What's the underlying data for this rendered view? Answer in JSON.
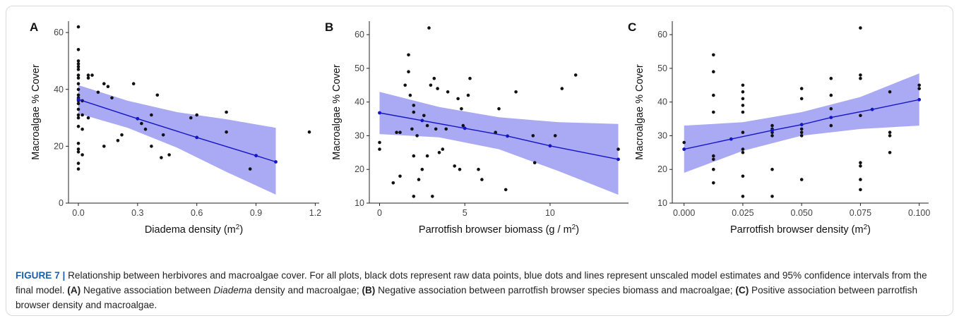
{
  "figure": {
    "caption": {
      "label": "FIGURE 7 |",
      "intro": "Relationship between herbivores and macroalgae cover. For all plots, black dots represent raw data points, blue dots and lines represent unscaled model estimates and 95% confidence intervals from the final model.",
      "part_a_tag": "(A)",
      "part_a_pre": "Negative association between",
      "part_a_italic": "Diadema",
      "part_a_post": "density and macroalgae;",
      "part_b_tag": "(B)",
      "part_b_text": "Negative association between parrotfish browser species biomass and macroalgae;",
      "part_c_tag": "(C)",
      "part_c_text": "Positive association between parrotfish browser density and macroalgae."
    },
    "colors": {
      "raw_points": "#111111",
      "model": "#1515c8",
      "ci_band": "#a9a9f4"
    }
  },
  "chart_data": [
    {
      "panel": "A",
      "type": "scatter",
      "xlabel": "Diadema density",
      "xunit": "(m",
      "xunit_sup": "2",
      "xunit_end": ")",
      "ylabel": "Macroalgae % Cover",
      "xlim": [
        -0.05,
        1.22
      ],
      "ylim": [
        0,
        64
      ],
      "xticks": [
        0.0,
        0.3,
        0.6,
        0.9,
        1.2
      ],
      "xtick_labels": [
        "0.0",
        "0.3",
        "0.6",
        "0.9",
        "1.2"
      ],
      "yticks": [
        0,
        20,
        40,
        60
      ],
      "ytick_labels": [
        "0",
        "20",
        "40",
        "60"
      ],
      "raw_points": [
        [
          0,
          62
        ],
        [
          0,
          54
        ],
        [
          0,
          50
        ],
        [
          0,
          49
        ],
        [
          0,
          48
        ],
        [
          0,
          47
        ],
        [
          0,
          45
        ],
        [
          0,
          44
        ],
        [
          0,
          42
        ],
        [
          0,
          40
        ],
        [
          0,
          38
        ],
        [
          0,
          37
        ],
        [
          0,
          36
        ],
        [
          0,
          35
        ],
        [
          0,
          33
        ],
        [
          0,
          31
        ],
        [
          0,
          30
        ],
        [
          0,
          27
        ],
        [
          0,
          21
        ],
        [
          0,
          19
        ],
        [
          0,
          18
        ],
        [
          0,
          14
        ],
        [
          0,
          12
        ],
        [
          0.02,
          36
        ],
        [
          0.02,
          31
        ],
        [
          0.02,
          26
        ],
        [
          0.02,
          17
        ],
        [
          0.05,
          45
        ],
        [
          0.05,
          44
        ],
        [
          0.05,
          30
        ],
        [
          0.07,
          45
        ],
        [
          0.1,
          39
        ],
        [
          0.13,
          42
        ],
        [
          0.13,
          20
        ],
        [
          0.15,
          41
        ],
        [
          0.17,
          37
        ],
        [
          0.2,
          22
        ],
        [
          0.22,
          24
        ],
        [
          0.28,
          42
        ],
        [
          0.32,
          28
        ],
        [
          0.34,
          26
        ],
        [
          0.37,
          31
        ],
        [
          0.37,
          20
        ],
        [
          0.4,
          38
        ],
        [
          0.42,
          16
        ],
        [
          0.43,
          24
        ],
        [
          0.46,
          17
        ],
        [
          0.57,
          30
        ],
        [
          0.6,
          31
        ],
        [
          0.75,
          32
        ],
        [
          0.75,
          25
        ],
        [
          0.87,
          12
        ],
        [
          1.17,
          25
        ]
      ],
      "model_points": [
        [
          0,
          36.5
        ],
        [
          0.3,
          29.7
        ],
        [
          0.6,
          23.1
        ],
        [
          0.9,
          16.7
        ],
        [
          1.0,
          14.5
        ]
      ],
      "ci_band": {
        "x": [
          0,
          0.25,
          0.5,
          0.75,
          1.0
        ],
        "lower": [
          31.5,
          26.5,
          19.5,
          11.0,
          3.0
        ],
        "upper": [
          41.5,
          36.0,
          32.0,
          29.5,
          26.5
        ]
      }
    },
    {
      "panel": "B",
      "type": "scatter",
      "xlabel": "Parrotfish browser biomass",
      "xunit": "(g / m",
      "xunit_sup": "2",
      "xunit_end": ")",
      "ylabel": "Macroalgae % Cover",
      "xlim": [
        -0.6,
        14.6
      ],
      "ylim": [
        10,
        64
      ],
      "xticks": [
        0,
        5,
        10
      ],
      "xtick_labels": [
        "0",
        "5",
        "10"
      ],
      "yticks": [
        10,
        20,
        30,
        40,
        50,
        60
      ],
      "ytick_labels": [
        "10",
        "20",
        "30",
        "40",
        "50",
        "60"
      ],
      "raw_points": [
        [
          0,
          28
        ],
        [
          0,
          26
        ],
        [
          0.8,
          16
        ],
        [
          1.0,
          31
        ],
        [
          1.2,
          31
        ],
        [
          1.2,
          18
        ],
        [
          1.5,
          45
        ],
        [
          1.7,
          54
        ],
        [
          1.7,
          49
        ],
        [
          1.8,
          42
        ],
        [
          1.9,
          32
        ],
        [
          2.0,
          39
        ],
        [
          2.0,
          37
        ],
        [
          2.0,
          24
        ],
        [
          2.0,
          12
        ],
        [
          2.2,
          30
        ],
        [
          2.3,
          17
        ],
        [
          2.5,
          20
        ],
        [
          2.6,
          36
        ],
        [
          2.8,
          24
        ],
        [
          2.8,
          33
        ],
        [
          2.9,
          62
        ],
        [
          3.0,
          45
        ],
        [
          3.1,
          12
        ],
        [
          3.2,
          47
        ],
        [
          3.3,
          32
        ],
        [
          3.4,
          44
        ],
        [
          3.5,
          25
        ],
        [
          3.7,
          26
        ],
        [
          3.9,
          32
        ],
        [
          4.0,
          43
        ],
        [
          4.4,
          21
        ],
        [
          4.6,
          41
        ],
        [
          4.7,
          20
        ],
        [
          4.8,
          38
        ],
        [
          4.9,
          33
        ],
        [
          5.2,
          42
        ],
        [
          5.3,
          47
        ],
        [
          5.8,
          20
        ],
        [
          6.0,
          17
        ],
        [
          6.8,
          31
        ],
        [
          7.0,
          38
        ],
        [
          7.4,
          14
        ],
        [
          8.0,
          43
        ],
        [
          9.0,
          30
        ],
        [
          9.1,
          22
        ],
        [
          10.3,
          30
        ],
        [
          10.7,
          44
        ],
        [
          11.5,
          48
        ],
        [
          14.0,
          26
        ]
      ],
      "model_points": [
        [
          0,
          36.8
        ],
        [
          2.5,
          34.5
        ],
        [
          5,
          32.2
        ],
        [
          7.5,
          29.9
        ],
        [
          10,
          27.0
        ],
        [
          14.0,
          23.0
        ]
      ],
      "ci_band": {
        "x": [
          0,
          3.5,
          7,
          10.5,
          14
        ],
        "lower": [
          30.5,
          29.5,
          26.0,
          19.5,
          12.5
        ],
        "upper": [
          43.0,
          38.5,
          35.5,
          34.0,
          33.5
        ]
      }
    },
    {
      "panel": "C",
      "type": "scatter",
      "xlabel": "Parrotfish browser density",
      "xunit": "(m",
      "xunit_sup": "2",
      "xunit_end": ")",
      "ylabel": "Macroalgae % Cover",
      "xlim": [
        -0.005,
        0.104
      ],
      "ylim": [
        10,
        64
      ],
      "xticks": [
        0.0,
        0.025,
        0.05,
        0.075,
        0.1
      ],
      "xtick_labels": [
        "0.000",
        "0.025",
        "0.050",
        "0.075",
        "0.100"
      ],
      "yticks": [
        10,
        20,
        30,
        40,
        50,
        60
      ],
      "ytick_labels": [
        "10",
        "20",
        "30",
        "40",
        "50",
        "60"
      ],
      "raw_points": [
        [
          0,
          28
        ],
        [
          0,
          26
        ],
        [
          0.0125,
          54
        ],
        [
          0.0125,
          49
        ],
        [
          0.0125,
          42
        ],
        [
          0.0125,
          37
        ],
        [
          0.0125,
          24
        ],
        [
          0.0125,
          23
        ],
        [
          0.0125,
          20
        ],
        [
          0.0125,
          16
        ],
        [
          0.025,
          45
        ],
        [
          0.025,
          43
        ],
        [
          0.025,
          41
        ],
        [
          0.025,
          39
        ],
        [
          0.025,
          37
        ],
        [
          0.025,
          31
        ],
        [
          0.025,
          26
        ],
        [
          0.025,
          25
        ],
        [
          0.025,
          18
        ],
        [
          0.025,
          12
        ],
        [
          0.0375,
          33
        ],
        [
          0.0375,
          32
        ],
        [
          0.0375,
          31
        ],
        [
          0.0375,
          30
        ],
        [
          0.0375,
          20
        ],
        [
          0.0375,
          12
        ],
        [
          0.05,
          44
        ],
        [
          0.05,
          41
        ],
        [
          0.05,
          32
        ],
        [
          0.05,
          31
        ],
        [
          0.05,
          30
        ],
        [
          0.05,
          17
        ],
        [
          0.0625,
          47
        ],
        [
          0.0625,
          42
        ],
        [
          0.0625,
          38
        ],
        [
          0.0625,
          33
        ],
        [
          0.075,
          62
        ],
        [
          0.075,
          48
        ],
        [
          0.075,
          47
        ],
        [
          0.075,
          36
        ],
        [
          0.075,
          22
        ],
        [
          0.075,
          21
        ],
        [
          0.075,
          17
        ],
        [
          0.075,
          14
        ],
        [
          0.0875,
          43
        ],
        [
          0.0875,
          31
        ],
        [
          0.0875,
          30
        ],
        [
          0.0875,
          25
        ],
        [
          0.1,
          45
        ],
        [
          0.1,
          44
        ]
      ],
      "model_points": [
        [
          0,
          26.0
        ],
        [
          0.02,
          29.0
        ],
        [
          0.0375,
          31.6
        ],
        [
          0.05,
          33.3
        ],
        [
          0.0625,
          35.4
        ],
        [
          0.08,
          37.8
        ],
        [
          0.1,
          40.7
        ]
      ],
      "ci_band": {
        "x": [
          0,
          0.025,
          0.05,
          0.075,
          0.1
        ],
        "lower": [
          19.0,
          25.5,
          30.0,
          32.0,
          33.0
        ],
        "upper": [
          33.0,
          34.0,
          37.0,
          41.5,
          48.5
        ]
      }
    }
  ]
}
